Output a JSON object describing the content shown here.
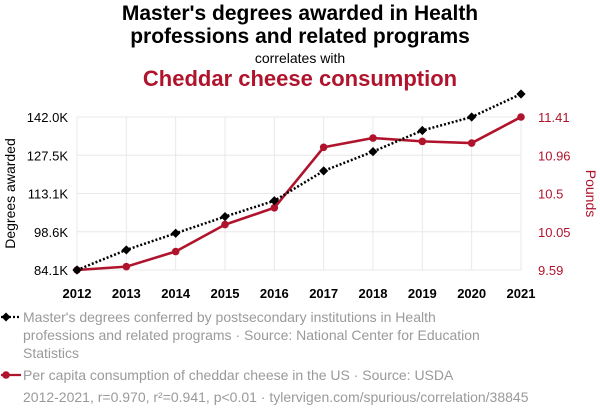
{
  "header": {
    "title_line1": "Master's degrees awarded in Health",
    "title_line2": "professions and related programs",
    "correlates": "correlates with",
    "title2": "Cheddar cheese consumption"
  },
  "colors": {
    "series1": "#000000",
    "series2": "#b0142d",
    "grid": "#e8e8e8",
    "legend_text": "#9a9a9a"
  },
  "chart_data": {
    "type": "line",
    "title": "Master's degrees awarded in Health professions and related programs correlates with Cheddar cheese consumption",
    "x": [
      "2012",
      "2013",
      "2014",
      "2015",
      "2016",
      "2017",
      "2018",
      "2019",
      "2020",
      "2021"
    ],
    "series": [
      {
        "name": "Master's degrees conferred by postsecondary institutions in Health professions and related programs",
        "axis": "left",
        "style": "dotted",
        "marker": "diamond",
        "values": [
          84.1,
          91.7,
          98.0,
          104.3,
          110.3,
          121.6,
          128.9,
          136.9,
          142.0,
          150.7
        ]
      },
      {
        "name": "Per capita consumption of cheddar cheese in the US",
        "axis": "right",
        "style": "solid",
        "marker": "circle",
        "values": [
          9.59,
          9.63,
          9.81,
          10.13,
          10.33,
          11.05,
          11.16,
          11.12,
          11.1,
          11.41
        ]
      }
    ],
    "y_left": {
      "label": "Degrees awarded",
      "ticks": [
        "84.1K",
        "98.6K",
        "113.1K",
        "127.5K",
        "142.0K"
      ],
      "range": [
        84.1,
        142.0
      ]
    },
    "y_right": {
      "label": "Pounds",
      "ticks": [
        "9.59",
        "10.05",
        "10.5",
        "10.96",
        "11.41"
      ],
      "range": [
        9.59,
        11.41
      ]
    },
    "grid": true
  },
  "legend": {
    "series1_text": "Master's degrees conferred by postsecondary institutions in Health professions and related programs · Source: National Center for Education Statistics",
    "series2_text": "Per capita consumption of cheddar cheese in the US · Source: USDA"
  },
  "footer": {
    "text": "2012-2021, r=0.970, r²=0.941, p<0.01 · tylervigen.com/spurious/correlation/38845"
  }
}
